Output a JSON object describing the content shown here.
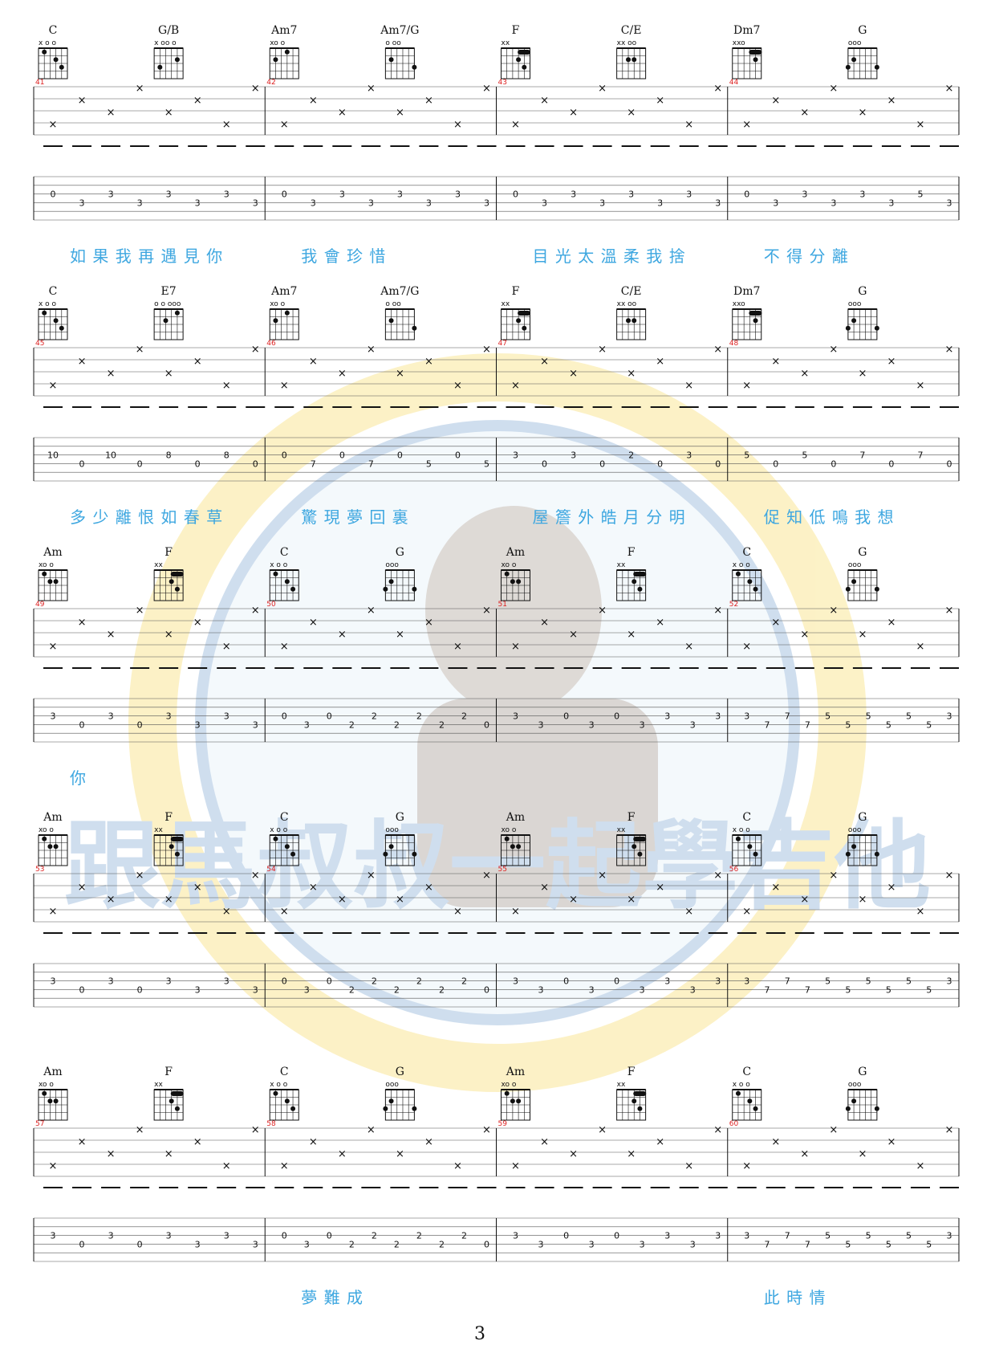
{
  "page": {
    "number": "3"
  },
  "watermark": {
    "text": "跟馬叔叔一起學吉他"
  },
  "systems": [
    {
      "bars": [
        {
          "num": "41",
          "chords": [
            "C",
            "G/B"
          ],
          "tab": [
            "0",
            "3",
            "3",
            "3",
            "3",
            "3",
            "3",
            "3"
          ]
        },
        {
          "num": "42",
          "chords": [
            "Am7",
            "Am7/G"
          ],
          "tab": [
            "0",
            "3",
            "3",
            "3",
            "3",
            "3",
            "3",
            "3"
          ]
        },
        {
          "num": "43",
          "chords": [
            "F",
            "C/E"
          ],
          "tab": [
            "0",
            "3",
            "3",
            "3",
            "3",
            "3",
            "3",
            "3"
          ]
        },
        {
          "num": "44",
          "chords": [
            "Dm7",
            "G"
          ],
          "tab": [
            "0",
            "3",
            "3",
            "3",
            "3",
            "3",
            "5",
            "3"
          ]
        }
      ],
      "lyrics": [
        "如 果 我 再 遇 見 你",
        "我 會 珍 惜",
        "目 光 太 溫 柔 我 捨",
        "不 得 分 離"
      ]
    },
    {
      "bars": [
        {
          "num": "45",
          "chords": [
            "C",
            "E7"
          ],
          "tab": [
            "10",
            "0",
            "10",
            "0",
            "8",
            "0",
            "8",
            "0"
          ]
        },
        {
          "num": "46",
          "chords": [
            "Am7",
            "Am7/G"
          ],
          "tab": [
            "0",
            "7",
            "0",
            "7",
            "0",
            "5",
            "0",
            "5"
          ]
        },
        {
          "num": "47",
          "chords": [
            "F",
            "C/E"
          ],
          "tab": [
            "3",
            "0",
            "3",
            "0",
            "2",
            "0",
            "3",
            "0"
          ]
        },
        {
          "num": "48",
          "chords": [
            "Dm7",
            "G"
          ],
          "tab": [
            "5",
            "0",
            "5",
            "0",
            "7",
            "0",
            "7",
            "0"
          ]
        }
      ],
      "lyrics": [
        "多 少 離 恨 如 春 草",
        "驚 現 夢 回 裏",
        "屋 簷 外 皓 月 分 明",
        "促 知 低 鳴 我 想"
      ]
    },
    {
      "bars": [
        {
          "num": "49",
          "chords": [
            "Am",
            "F"
          ],
          "tab": [
            "3",
            "0",
            "3",
            "0",
            "3",
            "3",
            "3",
            "3"
          ]
        },
        {
          "num": "50",
          "chords": [
            "C",
            "G"
          ],
          "tab": [
            "0",
            "3",
            "0",
            "2",
            "2",
            "2",
            "2",
            "2",
            "2",
            "0"
          ]
        },
        {
          "num": "51",
          "chords": [
            "Am",
            "F"
          ],
          "tab": [
            "3",
            "3",
            "0",
            "3",
            "0",
            "3",
            "3",
            "3",
            "3"
          ]
        },
        {
          "num": "52",
          "chords": [
            "C",
            "G"
          ],
          "tab": [
            "3",
            "7",
            "7",
            "7",
            "5",
            "5",
            "5",
            "5",
            "5",
            "5",
            "3"
          ]
        }
      ],
      "lyrics": [
        "你",
        "",
        "",
        ""
      ]
    },
    {
      "bars": [
        {
          "num": "53",
          "chords": [
            "Am",
            "F"
          ],
          "tab": [
            "3",
            "0",
            "3",
            "0",
            "3",
            "3",
            "3",
            "3"
          ]
        },
        {
          "num": "54",
          "chords": [
            "C",
            "G"
          ],
          "tab": [
            "0",
            "3",
            "0",
            "2",
            "2",
            "2",
            "2",
            "2",
            "2",
            "0"
          ]
        },
        {
          "num": "55",
          "chords": [
            "Am",
            "F"
          ],
          "tab": [
            "3",
            "3",
            "0",
            "3",
            "0",
            "3",
            "3",
            "3",
            "3"
          ]
        },
        {
          "num": "56",
          "chords": [
            "C",
            "G"
          ],
          "tab": [
            "3",
            "7",
            "7",
            "7",
            "5",
            "5",
            "5",
            "5",
            "5",
            "5",
            "3"
          ]
        }
      ],
      "lyrics": [
        "",
        "",
        "",
        ""
      ]
    },
    {
      "bars": [
        {
          "num": "57",
          "chords": [
            "Am",
            "F"
          ],
          "tab": [
            "3",
            "0",
            "3",
            "0",
            "3",
            "3",
            "3",
            "3"
          ]
        },
        {
          "num": "58",
          "chords": [
            "C",
            "G"
          ],
          "tab": [
            "0",
            "3",
            "0",
            "2",
            "2",
            "2",
            "2",
            "2",
            "2",
            "0"
          ]
        },
        {
          "num": "59",
          "chords": [
            "Am",
            "F"
          ],
          "tab": [
            "3",
            "3",
            "0",
            "3",
            "0",
            "3",
            "3",
            "3",
            "3"
          ]
        },
        {
          "num": "60",
          "chords": [
            "C",
            "G"
          ],
          "tab": [
            "3",
            "7",
            "7",
            "7",
            "5",
            "5",
            "5",
            "5",
            "5",
            "5",
            "3"
          ]
        }
      ],
      "lyrics": [
        "",
        "夢 難 成",
        "",
        "此 時 情"
      ]
    }
  ],
  "chord_shapes": {
    "C": {
      "open": "x  o o",
      "dots": [
        [
          2,
          1
        ],
        [
          4,
          2
        ],
        [
          5,
          3
        ]
      ]
    },
    "G/B": {
      "open": "x oo o",
      "dots": [
        [
          5,
          2
        ],
        [
          2,
          3
        ]
      ]
    },
    "Am7": {
      "open": "xo  o",
      "dots": [
        [
          4,
          1
        ],
        [
          2,
          2
        ]
      ]
    },
    "Am7/G": {
      "open": " o oo",
      "dots": [
        [
          2,
          2
        ],
        [
          6,
          3
        ]
      ]
    },
    "F": {
      "open": "xx",
      "dots": [
        [
          4,
          2
        ],
        [
          5,
          3
        ]
      ],
      "barre": true
    },
    "C/E": {
      "open": "xx  oo",
      "dots": [
        [
          4,
          2
        ],
        [
          3,
          2
        ]
      ]
    },
    "Dm7": {
      "open": "xxo",
      "dots": [
        [
          5,
          2
        ]
      ],
      "barre": true
    },
    "G": {
      "open": "  ooo",
      "dots": [
        [
          2,
          2
        ],
        [
          1,
          3
        ],
        [
          6,
          3
        ]
      ]
    },
    "E7": {
      "open": "o o ooo",
      "dots": [
        [
          5,
          1
        ],
        [
          3,
          2
        ]
      ]
    },
    "Am": {
      "open": "xo   o",
      "dots": [
        [
          3,
          2
        ],
        [
          4,
          2
        ],
        [
          2,
          1
        ]
      ]
    }
  }
}
